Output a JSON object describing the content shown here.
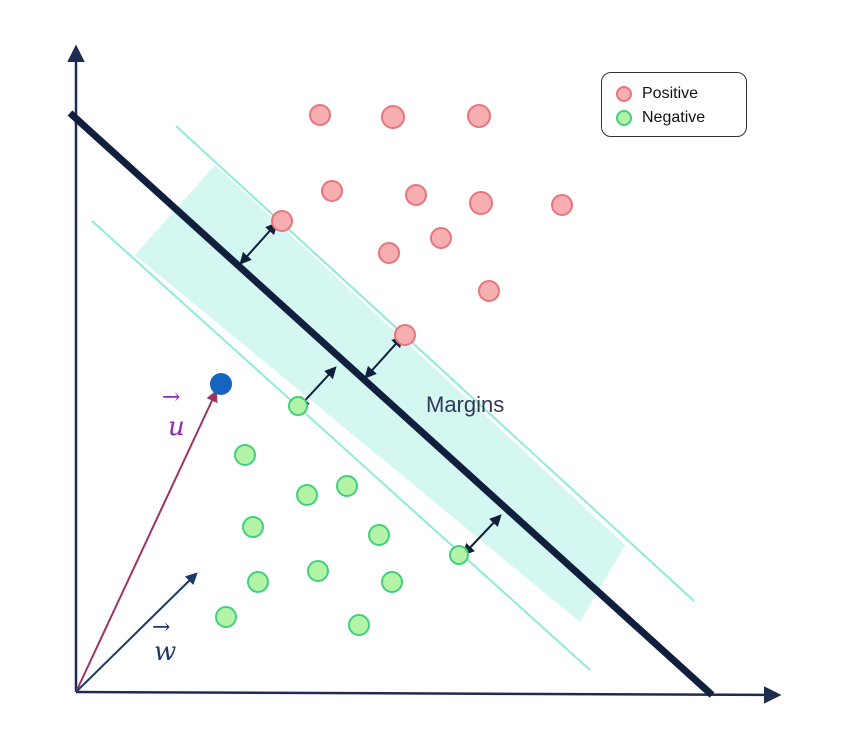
{
  "legend": {
    "positive_label": "Positive",
    "negative_label": "Negative"
  },
  "labels": {
    "margins": "Margins",
    "vector_u": "u",
    "vector_w": "w"
  },
  "colors": {
    "positive_fill": "#F7AEB0",
    "positive_stroke": "#E8757B",
    "negative_fill": "#B3F3A6",
    "negative_stroke": "#43D07E",
    "margin_band": "#D4F7F1",
    "margin_line": "#8EEBDB",
    "hyperplane": "#0F1F3D",
    "axis": "#1E2D4F",
    "vector_u": "#9C3465",
    "vector_w": "#1C3A67",
    "point_u": "#1565C0",
    "vector_u_label": "#8E2BB3",
    "vector_w_label": "#1C3A67"
  },
  "icons": {
    "positive_marker": "pink-circle-icon",
    "negative_marker": "green-circle-icon"
  }
}
